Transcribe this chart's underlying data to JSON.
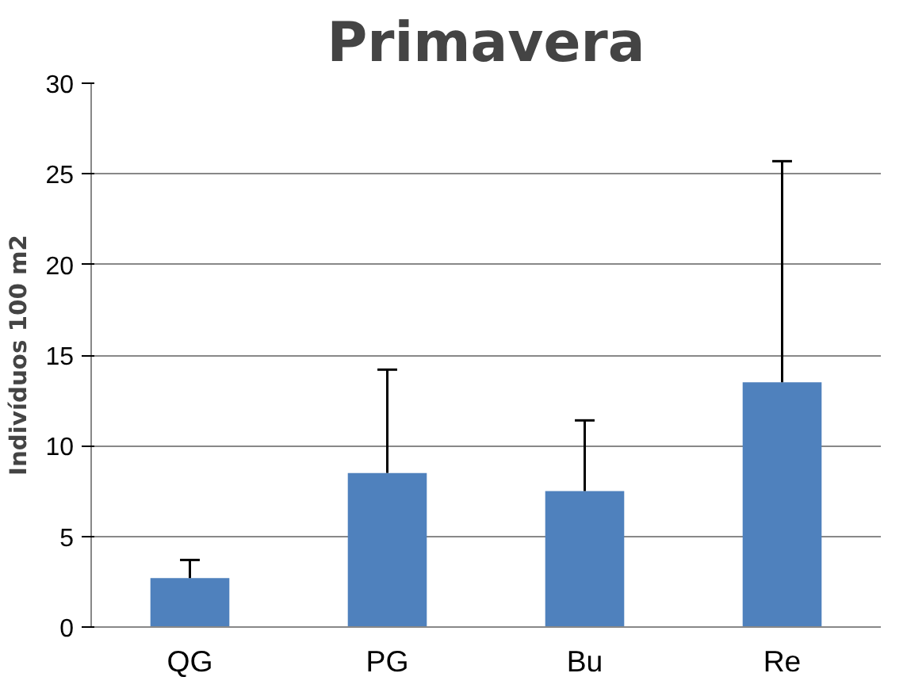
{
  "chart_data": {
    "type": "bar",
    "title": "Primavera",
    "ylabel": "Indivíduos 100 m2",
    "categories": [
      "QG",
      "PG",
      "Bu",
      "Re"
    ],
    "values": [
      2.7,
      8.5,
      7.5,
      13.5
    ],
    "errors": [
      [
        2.7,
        3.7
      ],
      [
        8.5,
        14.2
      ],
      [
        7.5,
        11.4
      ],
      [
        13.5,
        25.7
      ]
    ],
    "color": "#4f81bd",
    "ylim": [
      0,
      30
    ],
    "yticks": [
      0,
      5,
      10,
      15,
      20,
      25,
      30
    ],
    "grid": "y"
  }
}
